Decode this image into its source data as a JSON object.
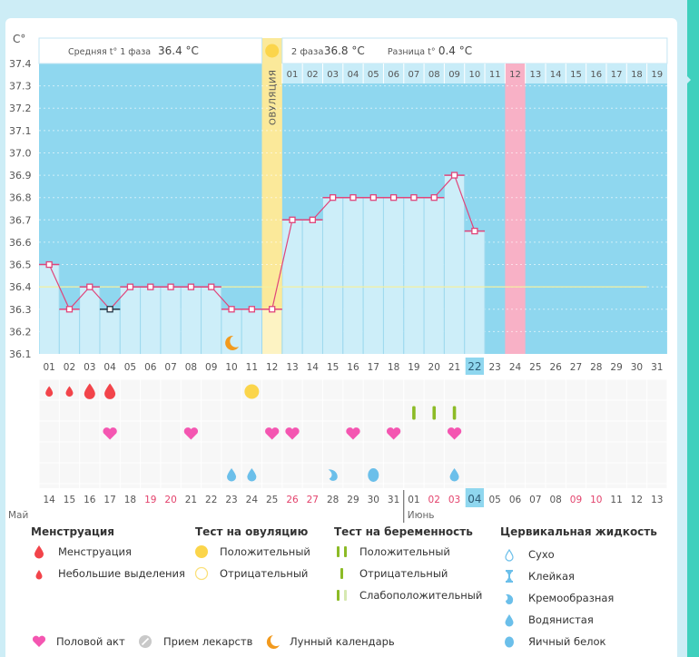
{
  "chart_data": {
    "type": "line",
    "title": "",
    "ylabel": "C°",
    "ylim": [
      36.1,
      37.4
    ],
    "yticks": [
      "37.4",
      "37.3",
      "37.2",
      "37.1",
      "37.0",
      "36.9",
      "36.8",
      "36.7",
      "36.6",
      "36.5",
      "36.4",
      "36.3",
      "36.2",
      "36.1"
    ],
    "header": {
      "phase1_label": "Средняя t° 1 фаза",
      "phase1_value": "36.4 °C",
      "phase2_label": "2 фаза",
      "phase2_value": "36.8 °C",
      "diff_label": "Разница t°",
      "diff_value": "0.4 °C"
    },
    "ovulation_label": "ОВУЛЯЦИЯ",
    "ovulation_day_index": 11,
    "highlight_day_index": 23,
    "today_index": 21,
    "coverline": 36.4,
    "cycle_days": [
      "01",
      "02",
      "03",
      "04",
      "05",
      "06",
      "07",
      "08",
      "09",
      "10",
      "11",
      "12",
      "13",
      "14",
      "15",
      "16",
      "17",
      "18",
      "19",
      "20",
      "21",
      "22",
      "23",
      "24",
      "25",
      "26",
      "27",
      "28",
      "29",
      "30",
      "31"
    ],
    "next_cycle_days": [
      "01",
      "02",
      "03",
      "04",
      "05",
      "06",
      "07",
      "08",
      "09",
      "10",
      "11",
      "12",
      "13",
      "14",
      "15",
      "16",
      "17",
      "18",
      "19"
    ],
    "next_cycle_highlight_index": 11,
    "series": [
      {
        "name": "Базальная температура",
        "values": [
          36.5,
          36.3,
          36.4,
          36.3,
          36.4,
          36.4,
          36.4,
          36.4,
          36.4,
          36.3,
          36.3,
          36.3,
          36.7,
          36.7,
          36.8,
          36.8,
          36.8,
          36.8,
          36.8,
          36.8,
          36.9,
          36.65
        ],
        "color": "#e0457b"
      }
    ],
    "special_points": [
      {
        "index": 3,
        "marker": "dark"
      }
    ],
    "moon_day_index": 9,
    "calendar_dates": [
      {
        "d": "14",
        "w": false
      },
      {
        "d": "15",
        "w": false
      },
      {
        "d": "16",
        "w": false
      },
      {
        "d": "17",
        "w": false
      },
      {
        "d": "18",
        "w": false
      },
      {
        "d": "19",
        "w": true
      },
      {
        "d": "20",
        "w": true
      },
      {
        "d": "21",
        "w": false
      },
      {
        "d": "22",
        "w": false
      },
      {
        "d": "23",
        "w": false
      },
      {
        "d": "24",
        "w": false
      },
      {
        "d": "25",
        "w": false
      },
      {
        "d": "26",
        "w": true
      },
      {
        "d": "27",
        "w": true
      },
      {
        "d": "28",
        "w": false
      },
      {
        "d": "29",
        "w": false
      },
      {
        "d": "30",
        "w": false
      },
      {
        "d": "31",
        "w": false
      },
      {
        "d": "01",
        "w": false
      },
      {
        "d": "02",
        "w": true
      },
      {
        "d": "03",
        "w": true
      },
      {
        "d": "04",
        "w": false
      },
      {
        "d": "05",
        "w": false
      },
      {
        "d": "06",
        "w": false
      },
      {
        "d": "07",
        "w": false
      },
      {
        "d": "08",
        "w": false
      },
      {
        "d": "09",
        "w": true
      },
      {
        "d": "10",
        "w": true
      },
      {
        "d": "11",
        "w": false
      },
      {
        "d": "12",
        "w": false
      },
      {
        "d": "13",
        "w": false
      }
    ],
    "month_labels": [
      {
        "label": "Май",
        "index": 0
      },
      {
        "label": "Июнь",
        "index": 18
      }
    ],
    "events": {
      "menstruation": [
        {
          "index": 0,
          "size": "small"
        },
        {
          "index": 1,
          "size": "small"
        },
        {
          "index": 2,
          "size": "large"
        },
        {
          "index": 3,
          "size": "large"
        }
      ],
      "ovulation_test_positive": [
        10
      ],
      "pregnancy_test_negative": [
        18,
        19,
        20
      ],
      "intercourse": [
        3,
        7,
        11,
        12,
        15,
        17,
        20
      ],
      "cervical_watery": [
        9,
        10,
        20
      ],
      "cervical_creamy": [
        14
      ],
      "cervical_eggwhite": [
        16
      ]
    }
  },
  "legend": {
    "menstruation": {
      "title": "Менструация",
      "items": [
        "Менструация",
        "Небольшие выделения"
      ]
    },
    "ovulation_test": {
      "title": "Тест на овуляцию",
      "items": [
        "Положительный",
        "Отрицательный"
      ]
    },
    "pregnancy_test": {
      "title": "Тест на беременность",
      "items": [
        "Положительный",
        "Отрицательный",
        "Слабоположительный"
      ]
    },
    "cervical": {
      "title": "Цервикальная жидкость",
      "items": [
        "Сухо",
        "Клейкая",
        "Кремообразная",
        "Водянистая",
        "Яичный белок"
      ]
    },
    "other": [
      "Половой акт",
      "Прием лекарств",
      "Лунный календарь"
    ]
  },
  "colors": {
    "sky": "#8fd7ef",
    "bar_fill": "#cdeef9",
    "ovulation": "#fbe99a",
    "highlight": "#f8b1c6",
    "line": "#e0457b",
    "menstruation": "#f2444a",
    "heart": "#f456b1",
    "ovu_test": "#fbd54b",
    "preg_test": "#8cbb26",
    "cervical": "#6bbfea",
    "moon": "#f29a1e",
    "weekend": "#e3426c"
  }
}
